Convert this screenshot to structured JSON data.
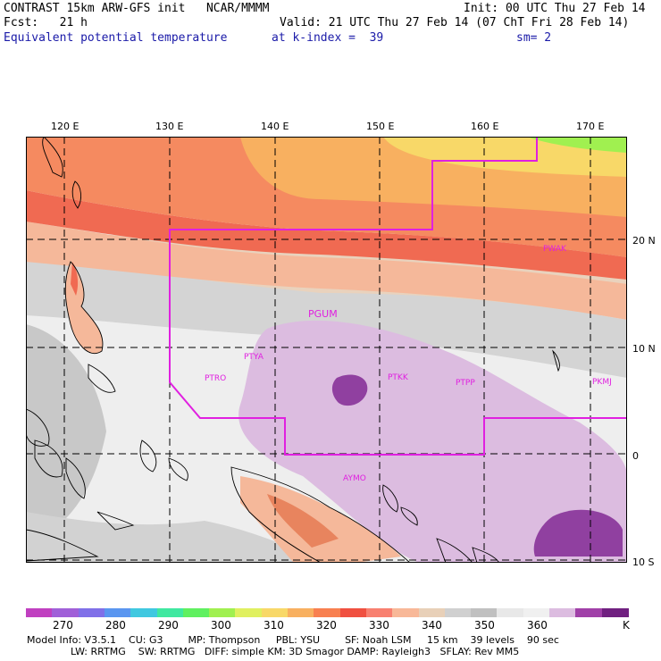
{
  "header": {
    "line1_left": "CONTRAST 15km ARW-GFS init   NCAR/MMMM",
    "line1_right": "Init: 00 UTC Thu 27 Feb 14",
    "line2_left": "Fcst:   21 h",
    "line2_right": "Valid: 21 UTC Thu 27 Feb 14 (07 ChT Fri 28 Feb 14)",
    "line3_field": "Equivalent potential temperature",
    "line3_level": "at k-index =  39",
    "line3_smooth": "sm= 2"
  },
  "map": {
    "lon_labels": [
      "120 E",
      "130 E",
      "140 E",
      "150 E",
      "160 E",
      "170 E"
    ],
    "lat_labels": [
      "20 N",
      "10 N",
      "0",
      "10 S"
    ],
    "stations": [
      "PWAK",
      "PGUM",
      "PTYA",
      "PTRO",
      "PTKK",
      "PTPP",
      "PKMJ",
      "AYMO"
    ]
  },
  "colorbar": {
    "labels": [
      "270",
      "280",
      "290",
      "300",
      "310",
      "320",
      "330",
      "340",
      "350",
      "360"
    ],
    "unit": "K",
    "colors": [
      "#c040c0",
      "#a060d8",
      "#8070e8",
      "#5a96f0",
      "#40c8e0",
      "#40e8a0",
      "#60f060",
      "#a0f050",
      "#e0f060",
      "#f8d868",
      "#f8b060",
      "#f88050",
      "#f05040",
      "#f88070",
      "#f8b898",
      "#e8d0b8",
      "#d0d0d0",
      "#c0c0c0",
      "#e8e8e8",
      "#f0f0f0",
      "#dcbce0",
      "#a040a8",
      "#702080"
    ]
  },
  "footer": {
    "line1": "Model Info: V3.5.1    CU: G3        MP: Thompson     PBL: YSU        SF: Noah LSM     15 km    39 levels    90 sec",
    "line2": "              LW: RRTMG    SW: RRTMG   DIFF: simple KM: 3D Smagor DAMP: Rayleigh3   SFLAY: Rev MM5"
  }
}
